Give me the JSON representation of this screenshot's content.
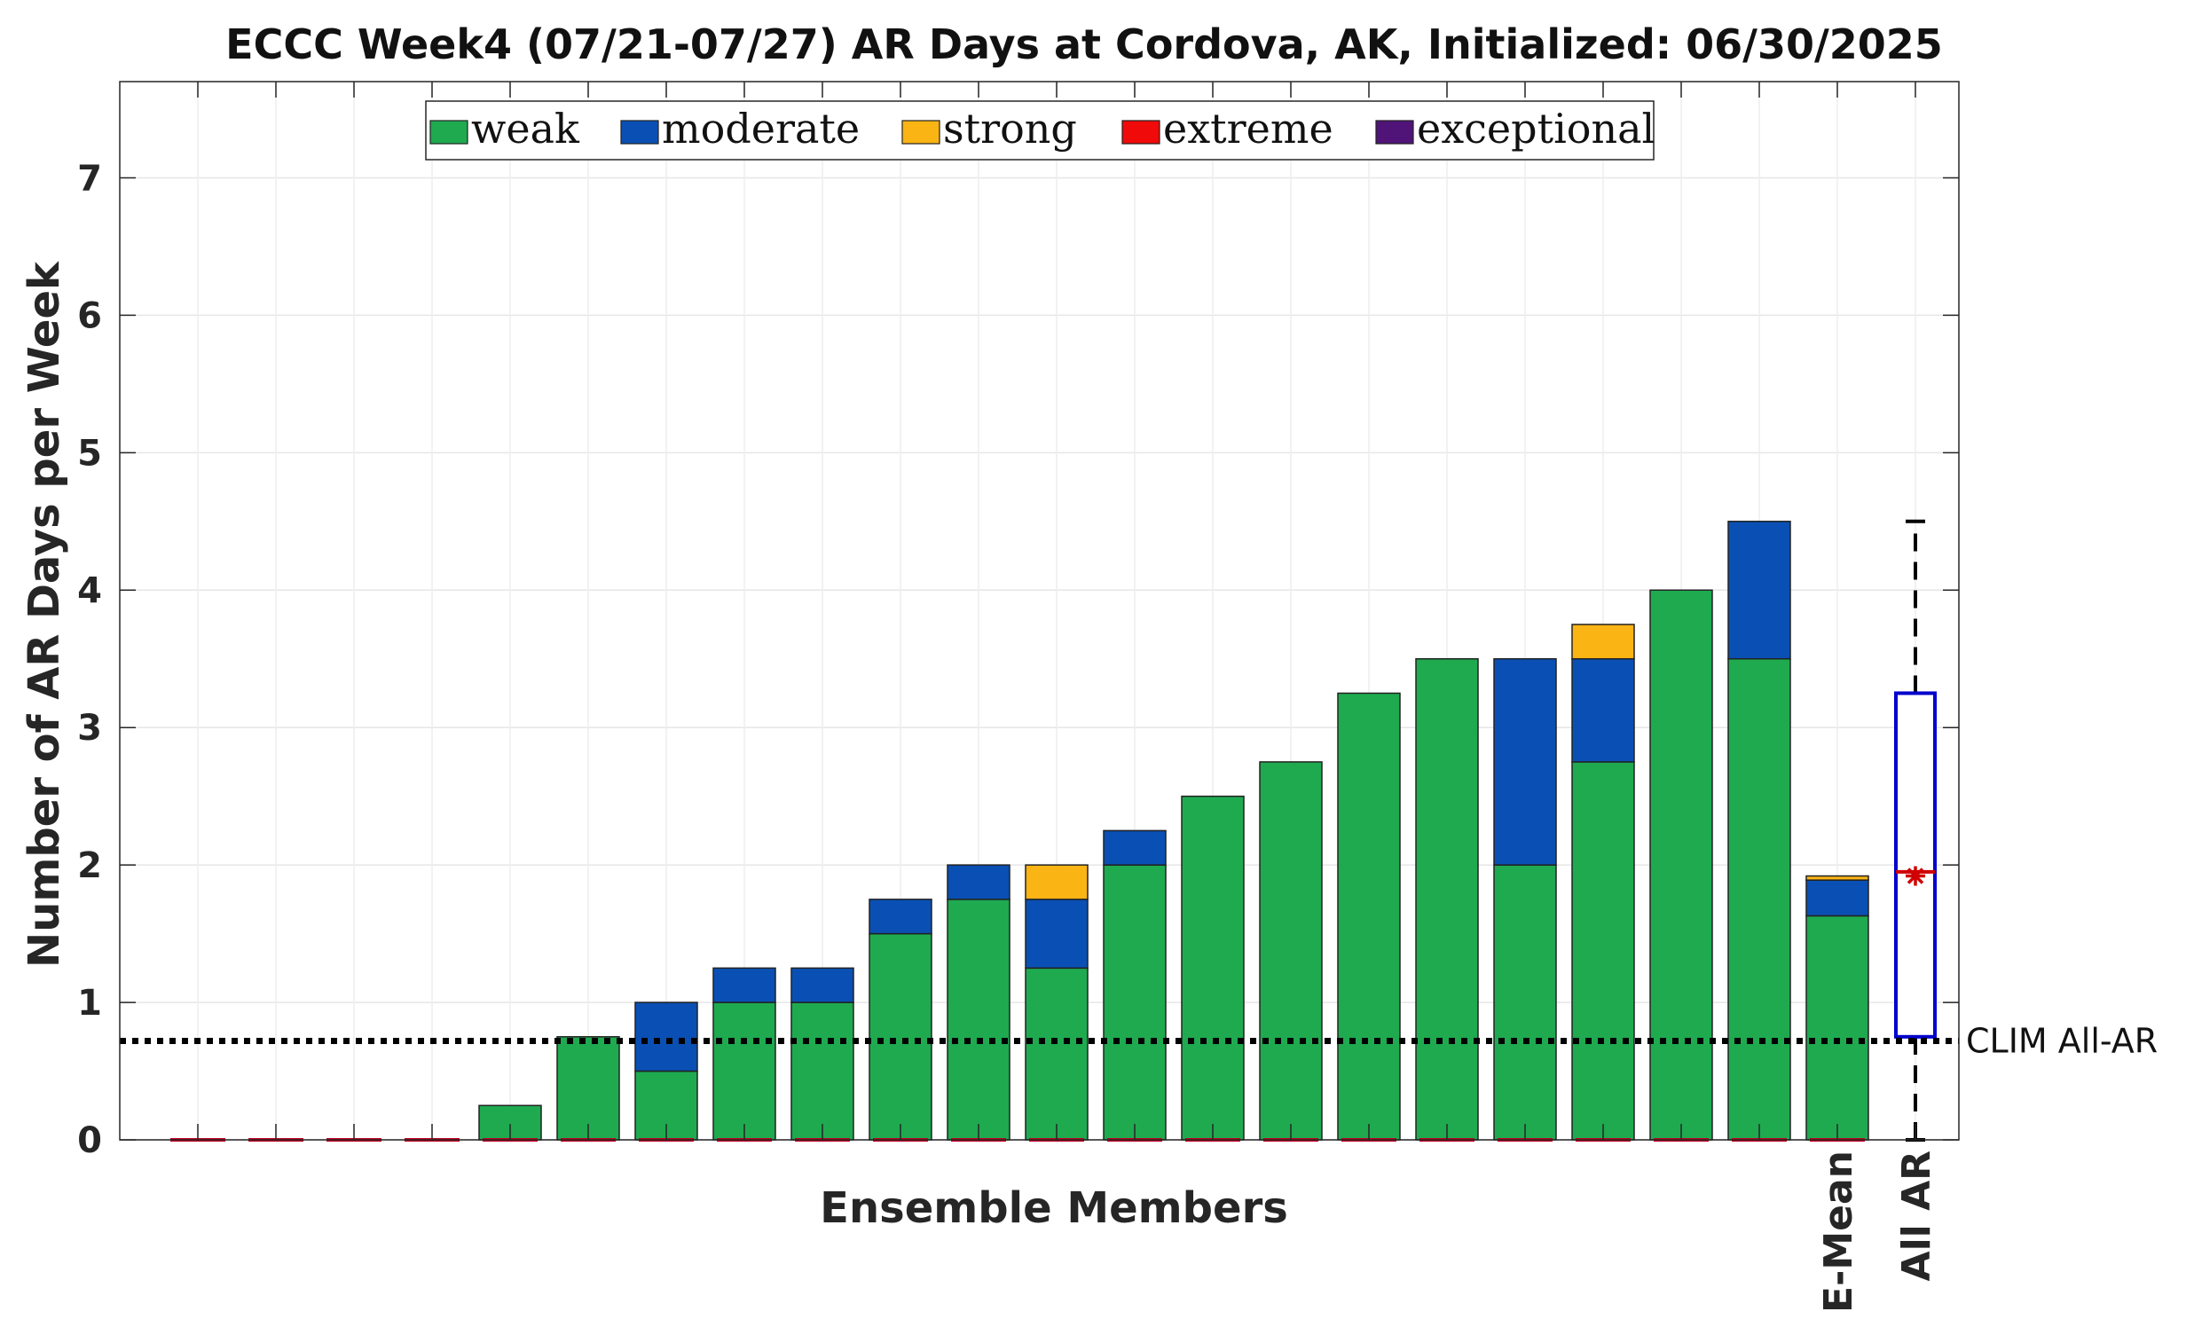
{
  "chart_data": {
    "type": "bar",
    "stacked": true,
    "title": "ECCC Week4 (07/21-07/27) AR Days at Cordova, AK, Initialized: 06/30/2025",
    "xlabel": "Ensemble Members",
    "ylabel": "Number of AR Days per Week",
    "ylim": [
      0,
      7.7
    ],
    "yticks": [
      0,
      1,
      2,
      3,
      4,
      5,
      6,
      7
    ],
    "grid": true,
    "legend_position": "top-center",
    "series": [
      {
        "name": "weak",
        "color": "#1faa50",
        "values": [
          0,
          0,
          0,
          0,
          0.25,
          0.75,
          0.5,
          1,
          1,
          1.5,
          1.75,
          1.25,
          2,
          2.5,
          2.75,
          3.25,
          3.5,
          2,
          2.75,
          4,
          3.5,
          1.63
        ]
      },
      {
        "name": "moderate",
        "color": "#0a50b4",
        "values": [
          0,
          0,
          0,
          0,
          0,
          0,
          0.5,
          0.25,
          0.25,
          0.25,
          0.25,
          0.5,
          0.25,
          0,
          0,
          0,
          0,
          1.5,
          0.75,
          0,
          1,
          0.26
        ]
      },
      {
        "name": "strong",
        "color": "#fab414",
        "values": [
          0,
          0,
          0,
          0,
          0,
          0,
          0,
          0,
          0,
          0,
          0,
          0.25,
          0,
          0,
          0,
          0,
          0,
          0,
          0.25,
          0,
          0,
          0.03
        ]
      },
      {
        "name": "extreme",
        "color": "#f00a0a",
        "values": [
          0,
          0,
          0,
          0,
          0,
          0,
          0,
          0,
          0,
          0,
          0,
          0,
          0,
          0,
          0,
          0,
          0,
          0,
          0,
          0,
          0,
          0
        ]
      },
      {
        "name": "exceptional",
        "color": "#501478",
        "values": [
          0,
          0,
          0,
          0,
          0,
          0,
          0,
          0,
          0,
          0,
          0,
          0,
          0,
          0,
          0,
          0,
          0,
          0,
          0,
          0,
          0,
          0
        ]
      }
    ],
    "category_labels": [
      "",
      "",
      "",
      "",
      "",
      "",
      "",
      "",
      "",
      "",
      "",
      "",
      "",
      "",
      "",
      "",
      "",
      "",
      "",
      "",
      "",
      "E-Mean"
    ],
    "boxplot": {
      "label": "All AR",
      "min": 0,
      "q1": 0.75,
      "median": 1.95,
      "mean": 1.92,
      "q3": 3.25,
      "max": 4.5,
      "box_color": "#0000cc",
      "marker_color": "#d00000"
    },
    "reference_line": {
      "label": "CLIM All-AR",
      "value": 0.72
    }
  }
}
